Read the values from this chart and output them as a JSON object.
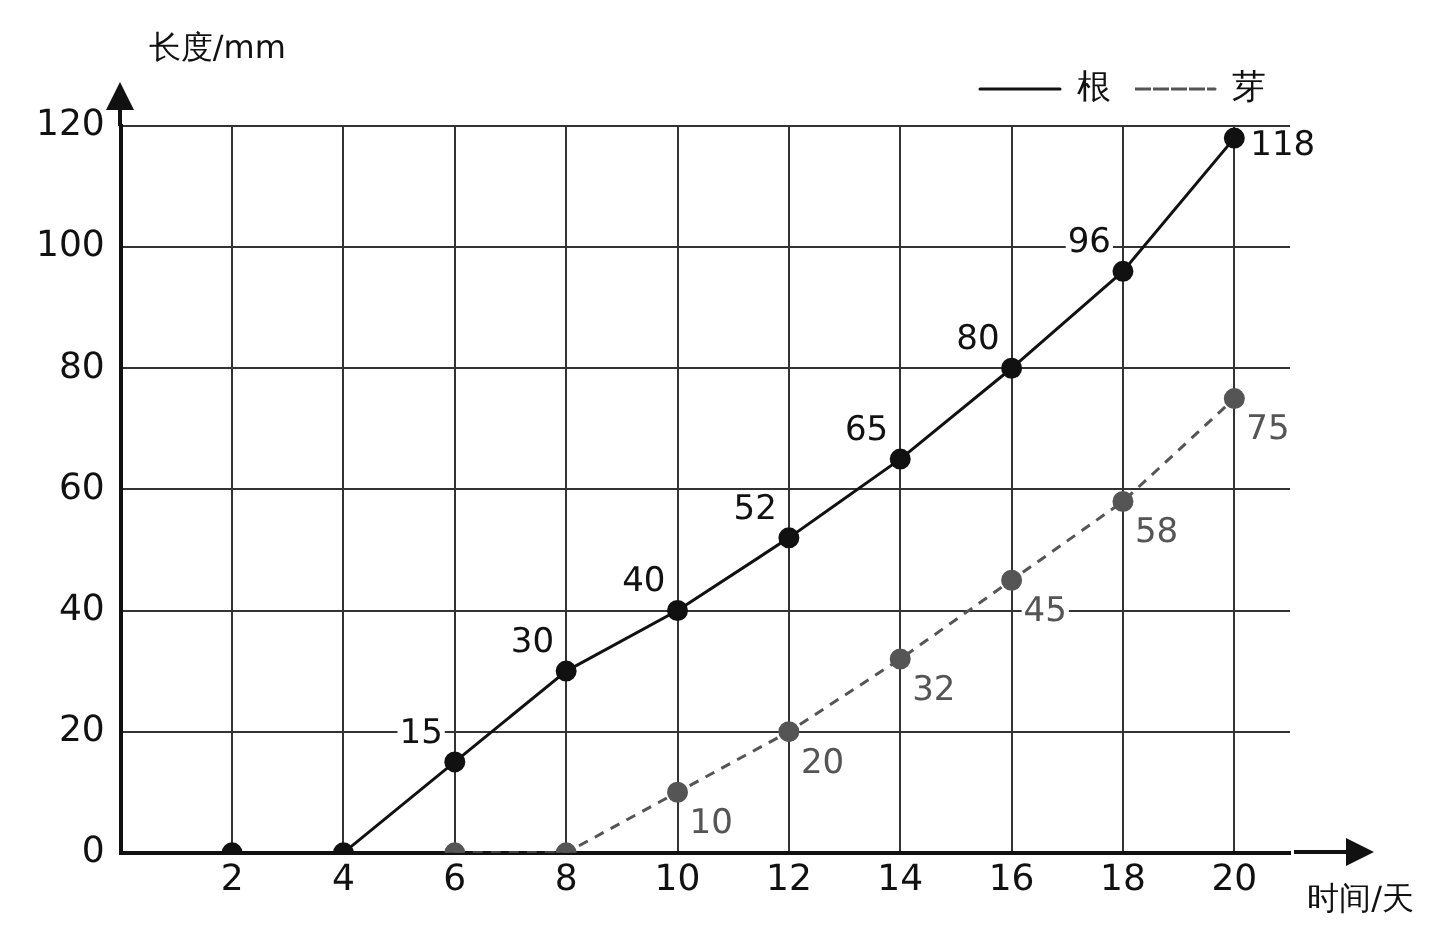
{
  "chart_data": {
    "type": "line",
    "xlabel": "时间/天",
    "ylabel": "长度/mm",
    "x": [
      2,
      4,
      6,
      8,
      10,
      12,
      14,
      16,
      18,
      20
    ],
    "series": [
      {
        "name": "根",
        "color": "#111111",
        "line_style": "solid",
        "values": [
          0,
          0,
          15,
          30,
          40,
          52,
          65,
          80,
          96,
          118
        ],
        "value_labels": [
          null,
          null,
          "15",
          "30",
          "40",
          "52",
          "65",
          "80",
          "96",
          "118"
        ]
      },
      {
        "name": "芽",
        "color": "#555555",
        "line_style": "dashed",
        "values": [
          null,
          null,
          0,
          0,
          10,
          20,
          32,
          45,
          58,
          75
        ],
        "value_labels": [
          null,
          null,
          null,
          null,
          "10",
          "20",
          "32",
          "45",
          "58",
          "75"
        ]
      }
    ],
    "xlim": [
      0,
      21
    ],
    "xticks": [
      2,
      4,
      6,
      8,
      10,
      12,
      14,
      16,
      18,
      20
    ],
    "ylim": [
      0,
      120
    ],
    "yticks": [
      0,
      20,
      40,
      60,
      80,
      100,
      120
    ],
    "grid": true,
    "legend": "top right",
    "marker": "circle"
  }
}
